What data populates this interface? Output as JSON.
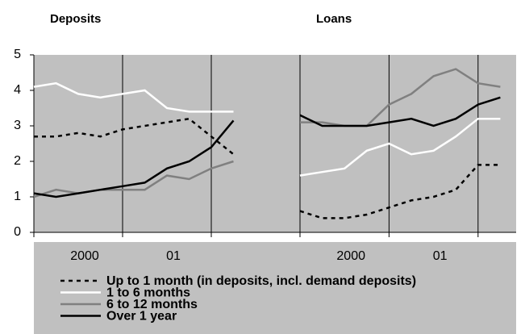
{
  "chart_data": {
    "type": "line",
    "ylim": [
      0,
      5
    ],
    "yticks": [
      0,
      1,
      2,
      3,
      4,
      5
    ],
    "xlim": [
      0,
      10
    ],
    "year_boundaries": [
      4,
      8
    ],
    "period_labels": [
      "2000",
      "01"
    ],
    "series": [
      {
        "name": "Up to 1 month (in deposits, incl. demand deposits)",
        "color": "#000000",
        "dashed": true
      },
      {
        "name": "1 to 6 months",
        "color": "#ffffff",
        "dashed": false
      },
      {
        "name": "6 to 12 months",
        "color": "#808080",
        "dashed": false
      },
      {
        "name": "Over 1 year",
        "color": "#000000",
        "dashed": false
      }
    ],
    "panels": [
      {
        "title": "Deposits",
        "x": [
          0,
          1,
          2,
          3,
          4,
          5,
          6,
          7,
          8,
          9
        ],
        "values": [
          [
            2.7,
            2.7,
            2.8,
            2.7,
            2.9,
            3.0,
            3.1,
            3.2,
            2.7,
            2.2
          ],
          [
            4.1,
            4.2,
            3.9,
            3.8,
            3.9,
            4.0,
            3.5,
            3.4,
            3.4,
            3.4
          ],
          [
            1.0,
            1.2,
            1.1,
            1.2,
            1.2,
            1.2,
            1.6,
            1.5,
            1.8,
            2.0
          ],
          [
            1.1,
            1.0,
            1.1,
            1.2,
            1.3,
            1.4,
            1.8,
            2.0,
            2.4,
            3.15
          ]
        ]
      },
      {
        "title": "Loans",
        "x": [
          0,
          1,
          2,
          3,
          4,
          5,
          6,
          7,
          8,
          9
        ],
        "values": [
          [
            0.6,
            0.4,
            0.4,
            0.5,
            0.7,
            0.9,
            1.0,
            1.2,
            1.9,
            1.9
          ],
          [
            1.6,
            1.7,
            1.8,
            2.3,
            2.5,
            2.2,
            2.3,
            2.7,
            3.2,
            3.2
          ],
          [
            3.1,
            3.1,
            3.0,
            3.0,
            3.6,
            3.9,
            4.4,
            4.6,
            4.2,
            4.1
          ],
          [
            3.3,
            3.0,
            3.0,
            3.0,
            3.1,
            3.2,
            3.0,
            3.2,
            3.6,
            3.8
          ]
        ]
      }
    ]
  }
}
